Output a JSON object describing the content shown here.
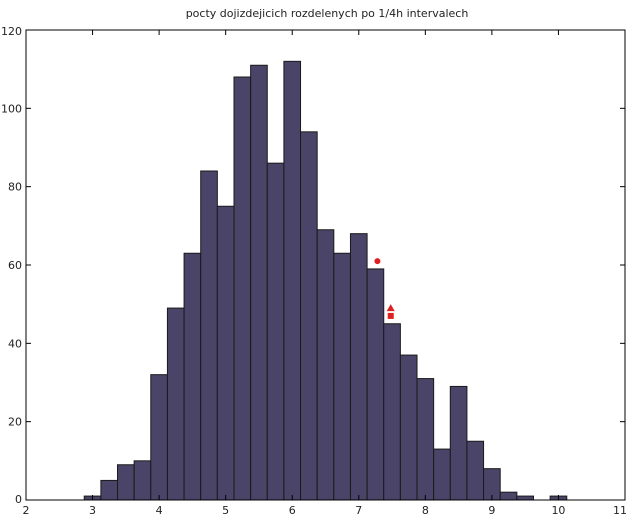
{
  "chart_data": {
    "type": "bar",
    "title": "pocty dojizdejicich rozdelenych po 1/4h intervalech",
    "xlabel": "",
    "ylabel": "",
    "xlim": [
      2,
      11
    ],
    "ylim": [
      0,
      120
    ],
    "xticks": [
      2,
      3,
      4,
      5,
      6,
      7,
      8,
      9,
      10,
      11
    ],
    "yticks": [
      0,
      20,
      40,
      60,
      80,
      100,
      120
    ],
    "bin_width": 0.25,
    "bar_color": "#4a4468",
    "bar_edge_color": "#1a1a1a",
    "marker_color": "#e02020",
    "grid": false,
    "series": [
      {
        "x": [
          3.0,
          3.25,
          3.5,
          3.75,
          4.0,
          4.25,
          4.5,
          4.75,
          5.0,
          5.25,
          5.5,
          5.75,
          6.0,
          6.25,
          6.5,
          6.75,
          7.0,
          7.25,
          7.5,
          7.75,
          8.0,
          8.25,
          8.5,
          8.75,
          9.0,
          9.25,
          9.5,
          9.75,
          10.0
        ],
        "values": [
          1,
          5,
          9,
          10,
          32,
          49,
          63,
          84,
          75,
          108,
          111,
          86,
          112,
          94,
          69,
          63,
          68,
          59,
          45,
          37,
          31,
          13,
          29,
          15,
          8,
          2,
          1,
          0,
          1
        ]
      }
    ],
    "markers": [
      {
        "shape": "circle",
        "x": 7.28,
        "y": 61
      },
      {
        "shape": "triangle",
        "x": 7.48,
        "y": 49
      },
      {
        "shape": "square",
        "x": 7.48,
        "y": 47
      }
    ]
  }
}
